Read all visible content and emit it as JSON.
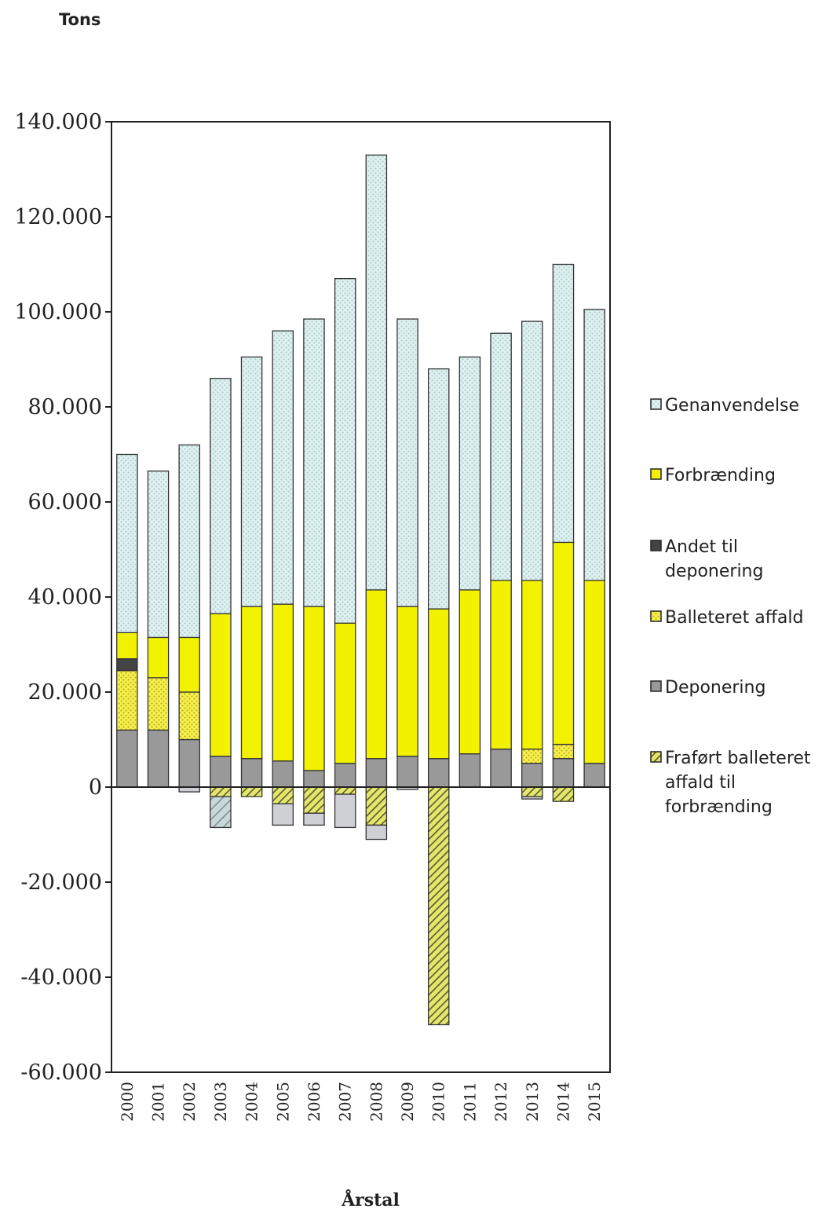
{
  "chart_data": {
    "type": "bar",
    "stacked": true,
    "ylabel": "Tons",
    "xlabel": "Årstal",
    "ylim": [
      -60000,
      140000
    ],
    "yticks": [
      -60000,
      -40000,
      -20000,
      0,
      20000,
      40000,
      60000,
      80000,
      100000,
      120000,
      140000
    ],
    "ytick_labels": [
      "-60.000",
      "-40.000",
      "-20.000",
      "0",
      "20.000",
      "40.000",
      "60.000",
      "80.000",
      "100.000",
      "120.000",
      "140.000"
    ],
    "legend_position": "right",
    "grid": false,
    "categories": [
      "2000",
      "2001",
      "2002",
      "2003",
      "2004",
      "2005",
      "2006",
      "2007",
      "2008",
      "2009",
      "2010",
      "2011",
      "2012",
      "2013",
      "2014",
      "2015"
    ],
    "series": [
      {
        "name": "Deponering",
        "color": "#999999",
        "pattern": "solid",
        "values": [
          12000,
          12000,
          10000,
          6500,
          6000,
          5500,
          3500,
          5000,
          6000,
          6500,
          6000,
          7000,
          8000,
          5000,
          6000,
          5000
        ]
      },
      {
        "name": "Balleteret affald",
        "color": "#f5f04a",
        "pattern": "dots",
        "values": [
          12500,
          11000,
          10000,
          0,
          0,
          0,
          0,
          0,
          0,
          0,
          0,
          0,
          0,
          3000,
          3000,
          0
        ]
      },
      {
        "name": "Andet til deponering",
        "color": "#444444",
        "pattern": "solid",
        "values": [
          2500,
          0,
          0,
          0,
          0,
          0,
          0,
          0,
          0,
          0,
          0,
          0,
          0,
          0,
          0,
          0
        ]
      },
      {
        "name": "Forbrænding",
        "color": "#f2f200",
        "pattern": "solid",
        "values": [
          5500,
          8500,
          11500,
          30000,
          32000,
          33000,
          34500,
          29500,
          35500,
          31500,
          31500,
          34500,
          35500,
          35500,
          42500,
          38500
        ]
      },
      {
        "name": "Genanvendelse",
        "color": "#d8ecec",
        "pattern": "dots-light",
        "values": [
          37500,
          35000,
          40500,
          49500,
          52500,
          57500,
          60500,
          72500,
          91500,
          60500,
          50500,
          49000,
          52000,
          54500,
          58500,
          57000
        ]
      },
      {
        "name": "Fraført balleteret affald til forbrænding",
        "color": "#d8d860",
        "pattern": "hatch",
        "values": [
          0,
          0,
          0,
          -2000,
          -2000,
          -3500,
          -5500,
          -1500,
          -8000,
          0,
          -50000,
          0,
          0,
          -2000,
          -3000,
          0
        ]
      },
      {
        "name": "",
        "color": "#cfcfd6",
        "pattern": "solid",
        "values": [
          0,
          0,
          -1000,
          0,
          0,
          -4500,
          -2500,
          -7000,
          -3000,
          -500,
          0,
          0,
          0,
          -500,
          0,
          0
        ]
      },
      {
        "name": "",
        "color": "#b8c8c8",
        "pattern": "hatch-light",
        "values": [
          0,
          0,
          0,
          -6500,
          0,
          0,
          0,
          0,
          0,
          0,
          0,
          0,
          0,
          0,
          0,
          0
        ]
      }
    ],
    "legend": [
      {
        "label": "Genanvendelse",
        "color": "#d8ecec",
        "pattern": "dots-light"
      },
      {
        "label": "Forbrænding",
        "color": "#f2f200",
        "pattern": "solid"
      },
      {
        "label": "Andet til deponering",
        "lines": [
          "Andet til",
          "deponering"
        ],
        "color": "#444444",
        "pattern": "solid"
      },
      {
        "label": "Balleteret affald",
        "color": "#f5f04a",
        "pattern": "dots"
      },
      {
        "label": "Deponering",
        "color": "#999999",
        "pattern": "solid"
      },
      {
        "label": "Fraført balleteret affald til forbrænding",
        "lines": [
          "Fraført balleteret",
          "affald til",
          "forbrænding"
        ],
        "color": "#d8d860",
        "pattern": "hatch"
      }
    ]
  }
}
